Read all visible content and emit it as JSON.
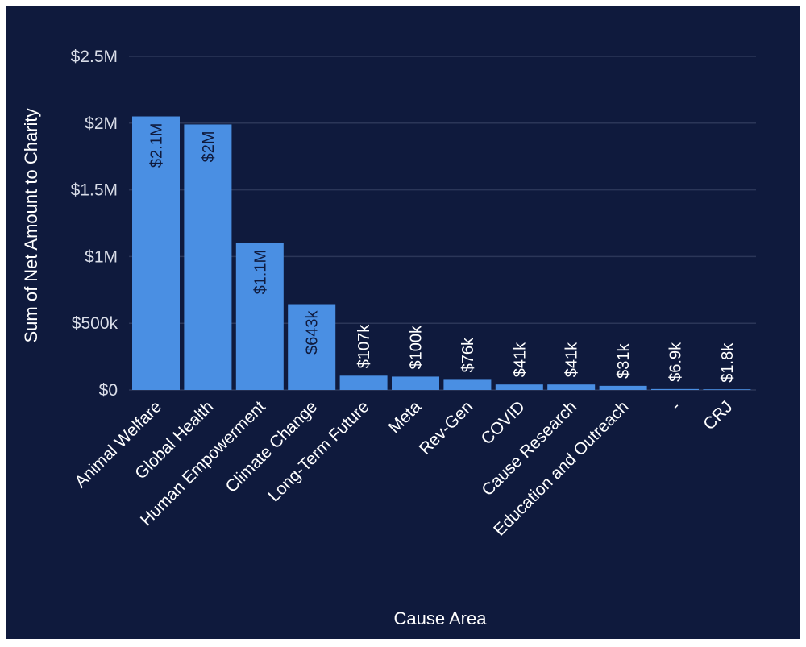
{
  "chart_data": {
    "type": "bar",
    "xlabel": "Cause Area",
    "ylabel": "Sum of Net Amount to Charity",
    "ylim": [
      0,
      2500000
    ],
    "yticks": [
      {
        "value": 0,
        "label": "$0"
      },
      {
        "value": 500000,
        "label": "$500k"
      },
      {
        "value": 1000000,
        "label": "$1M"
      },
      {
        "value": 1500000,
        "label": "$1.5M"
      },
      {
        "value": 2000000,
        "label": "$2M"
      },
      {
        "value": 2500000,
        "label": "$2.5M"
      }
    ],
    "categories": [
      "Animal Welfare",
      "Global Health",
      "Human Empowerment",
      "Climate Change",
      "Long-Term Future",
      "Meta",
      "Rev-Gen",
      "COVID",
      "Cause Research",
      "Education and Outreach",
      "-",
      "CRJ"
    ],
    "values": [
      2050000,
      1990000,
      1100000,
      643000,
      107000,
      100000,
      76000,
      41000,
      41000,
      31000,
      6900,
      1800
    ],
    "data_labels": [
      "$2.1M",
      "$2M",
      "$1.1M",
      "$643k",
      "$107k",
      "$100k",
      "$76k",
      "$41k",
      "$41k",
      "$31k",
      "$6.9k",
      "$1.8k"
    ],
    "grid": true,
    "colors": {
      "background": "#0f1a3d",
      "bar": "#4a8fe3",
      "grid": "#2b3658",
      "label_inside": "#0f1a3d",
      "label_outside": "#ffffff"
    }
  }
}
